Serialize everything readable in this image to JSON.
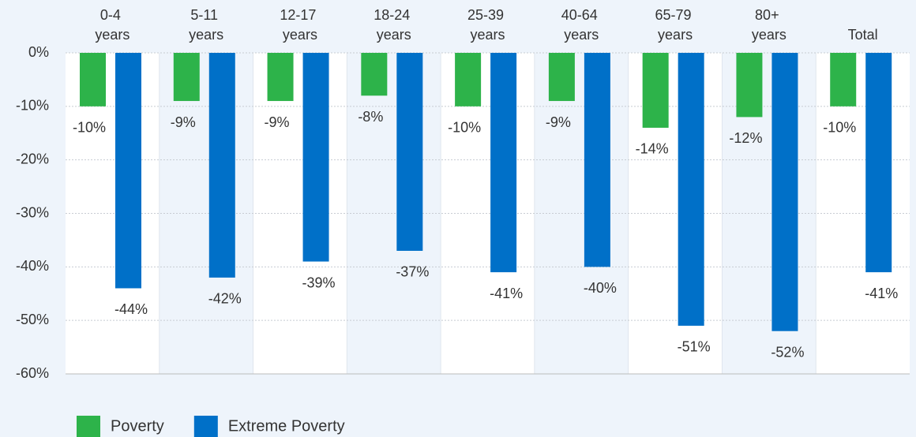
{
  "chart_data": {
    "type": "bar",
    "categories": [
      "0-4 years",
      "5-11 years",
      "12-17 years",
      "18-24 years",
      "25-39 years",
      "40-64 years",
      "65-79 years",
      "80+ years",
      "Total"
    ],
    "series": [
      {
        "name": "Poverty",
        "color": "#2db34a",
        "values": [
          -10,
          -9,
          -9,
          -8,
          -10,
          -9,
          -14,
          -12,
          -10
        ],
        "value_labels": [
          "-10%",
          "-9%",
          "-9%",
          "-8%",
          "-10%",
          "-9%",
          "-14%",
          "-12%",
          "-10%"
        ]
      },
      {
        "name": "Extreme Poverty",
        "color": "#0070c8",
        "values": [
          -44,
          -42,
          -39,
          -37,
          -41,
          -40,
          -51,
          -52,
          -41
        ],
        "value_labels": [
          "-44%",
          "-42%",
          "-39%",
          "-37%",
          "-41%",
          "-40%",
          "-51%",
          "-52%",
          "-41%"
        ]
      }
    ],
    "ylim": [
      -60,
      0
    ],
    "yticks": [
      {
        "value": 0,
        "label": "0%"
      },
      {
        "value": -10,
        "label": "-10%"
      },
      {
        "value": -20,
        "label": "-20%"
      },
      {
        "value": -30,
        "label": "-30%"
      },
      {
        "value": -40,
        "label": "-40%"
      },
      {
        "value": -50,
        "label": "-50%"
      },
      {
        "value": -60,
        "label": "-60%"
      }
    ],
    "grid": true,
    "legend": "bottom"
  }
}
